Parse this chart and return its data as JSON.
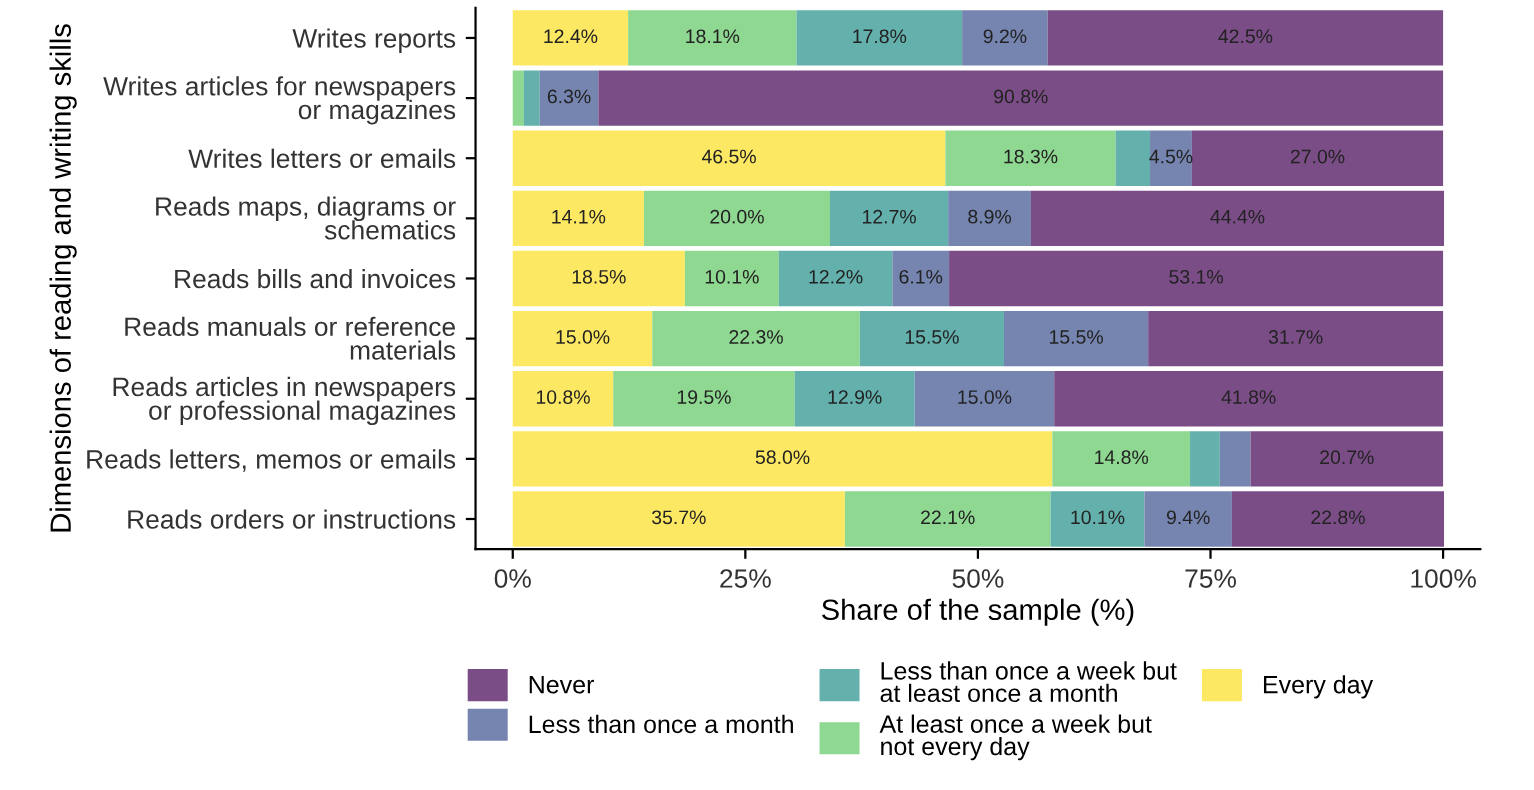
{
  "chart_data": {
    "type": "bar",
    "orientation": "horizontal",
    "stacked": true,
    "xlabel": "Share of the sample (%)",
    "ylabel": "Dimensions of reading and writing skills",
    "categories": [
      "Writes reports",
      "Writes articles for newspapers or magazines",
      "Writes letters or emails",
      "Reads maps, diagrams or schematics",
      "Reads bills and invoices",
      "Reads manuals or reference materials",
      "Reads articles in newspapers or professional magazines",
      "Reads letters, memos or emails",
      "Reads orders or instructions"
    ],
    "series": [
      {
        "name": "Every day",
        "color": "#fde863",
        "values": [
          12.4,
          0,
          46.5,
          14.1,
          18.5,
          15.0,
          10.8,
          58.0,
          35.7
        ],
        "value_labels": [
          "12.4%",
          null,
          "46.5%",
          "14.1%",
          "18.5%",
          "15.0%",
          "10.8%",
          "58.0%",
          "35.7%"
        ]
      },
      {
        "name": "At least once a week but not every day",
        "color": "#8fd891",
        "values": [
          18.1,
          1.2,
          18.3,
          20.0,
          10.1,
          22.3,
          19.5,
          14.8,
          22.1
        ],
        "value_labels": [
          "18.1%",
          null,
          "18.3%",
          "20.0%",
          "10.1%",
          "22.3%",
          "19.5%",
          "14.8%",
          "22.1%"
        ]
      },
      {
        "name": "Less than once a week but at least once a month",
        "color": "#63b0ad",
        "values": [
          17.8,
          1.7,
          3.7,
          12.7,
          12.2,
          15.5,
          12.9,
          3.2,
          10.1
        ],
        "value_labels": [
          "17.8%",
          null,
          null,
          "12.7%",
          "12.2%",
          "15.5%",
          "12.9%",
          null,
          "10.1%"
        ]
      },
      {
        "name": "Less than once a month",
        "color": "#7585b0",
        "values": [
          9.2,
          6.3,
          4.5,
          8.9,
          6.1,
          15.5,
          15.0,
          3.3,
          9.4
        ],
        "value_labels": [
          "9.2%",
          "6.3%",
          "4.5%",
          "8.9%",
          "6.1%",
          "15.5%",
          "15.0%",
          null,
          "9.4%"
        ]
      },
      {
        "name": "Never",
        "color": "#7b4d87",
        "values": [
          42.5,
          90.8,
          27.0,
          44.4,
          53.1,
          31.7,
          41.8,
          20.7,
          22.8
        ],
        "value_labels": [
          "42.5%",
          "90.8%",
          "27.0%",
          "44.4%",
          "53.1%",
          "31.7%",
          "41.8%",
          "20.7%",
          "22.8%"
        ]
      }
    ],
    "xlim": [
      -4,
      104
    ],
    "xticks": [
      {
        "value": 0,
        "label": "0%"
      },
      {
        "value": 25,
        "label": "25%"
      },
      {
        "value": 50,
        "label": "50%"
      },
      {
        "value": 75,
        "label": "75%"
      },
      {
        "value": 100,
        "label": "100%"
      }
    ],
    "grid": false,
    "legend": "bottom"
  }
}
